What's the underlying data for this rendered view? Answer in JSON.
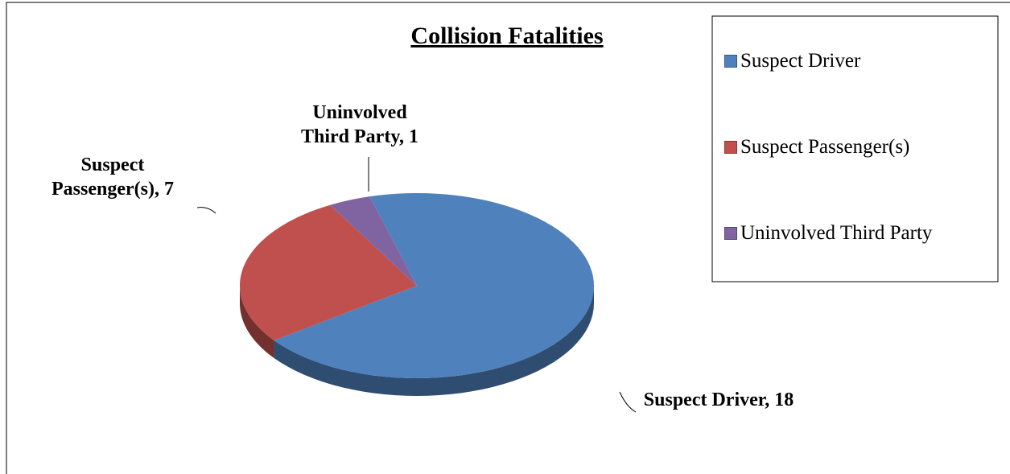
{
  "chart_data": {
    "type": "pie3d",
    "title": "Collision Fatalities",
    "categories": [
      "Suspect Driver",
      "Suspect Passenger(s)",
      "Uninvolved Third Party"
    ],
    "values": [
      18,
      7,
      1
    ],
    "value_labels": [
      "Suspect Driver, 18",
      "Suspect Passenger(s),  7",
      "Uninvolved Third Party, 1"
    ],
    "colors": [
      "#4f81bd",
      "#c0504d",
      "#8064a2"
    ],
    "legend": "right"
  }
}
